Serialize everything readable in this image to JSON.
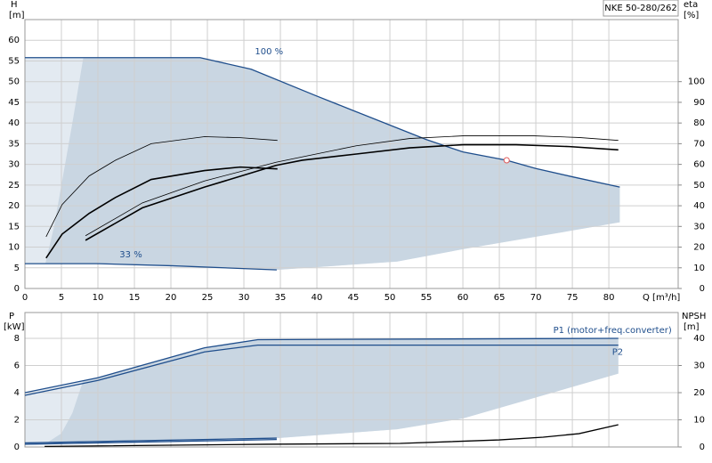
{
  "chart_data": [
    {
      "type": "line",
      "title": "NKE 50-280/262",
      "y_label": "H",
      "y_unit": "[m]",
      "y2_label": "eta",
      "y2_unit": "[%]",
      "x_label": "Q [m³/h]",
      "xlim": [
        0,
        89.5
      ],
      "xticks": [
        0,
        5,
        10,
        15,
        20,
        25,
        30,
        35,
        40,
        45,
        50,
        55,
        60,
        65,
        70,
        75,
        80
      ],
      "ylim": [
        0,
        65
      ],
      "yticks": [
        0,
        5,
        10,
        15,
        20,
        25,
        30,
        35,
        40,
        45,
        50,
        55,
        60
      ],
      "y2lim": [
        0,
        130
      ],
      "y2ticks": [
        0,
        10,
        20,
        30,
        40,
        50,
        60,
        70,
        80,
        90,
        100
      ],
      "grid": true,
      "shaded_range": {
        "color": "#e3eaf1",
        "x": [
          0,
          8,
          24,
          31,
          40,
          45,
          50,
          55,
          60,
          66,
          70,
          75,
          81.5,
          81.5,
          70,
          60,
          51,
          34.5,
          20,
          10,
          0
        ],
        "values": [
          55.8,
          55.8,
          55.8,
          53,
          46.5,
          43,
          39.5,
          36,
          33,
          31,
          29,
          27,
          24.5,
          16,
          12.5,
          9.5,
          6.5,
          4.5,
          5.5,
          6,
          6
        ]
      },
      "shaded_core": {
        "color": "#c9d6e2",
        "x": [
          2.8,
          4,
          5,
          6.5,
          8,
          24,
          31,
          40,
          45,
          50,
          55,
          60,
          66,
          70,
          75,
          81.5,
          81.5,
          70,
          60,
          51,
          34.5,
          20,
          10
        ],
        "values": [
          6,
          15,
          25,
          40,
          55.8,
          55.8,
          53,
          46.5,
          43,
          39.5,
          36,
          33,
          31,
          29,
          27,
          24.5,
          16,
          12.5,
          9.5,
          6.5,
          4.5,
          5.5,
          6
        ]
      },
      "series": [
        {
          "name": "100 %",
          "color": "#1f4e8c",
          "width": 1.3,
          "x": [
            0,
            8,
            24,
            31,
            40,
            45,
            50,
            55,
            60,
            66,
            70,
            75,
            81.5
          ],
          "values": [
            55.8,
            55.8,
            55.8,
            53,
            46.5,
            43,
            39.5,
            36,
            33,
            31,
            29,
            27,
            24.5
          ]
        },
        {
          "name": "33 %",
          "color": "#1f4e8c",
          "width": 1.3,
          "x": [
            0,
            10,
            20,
            34.5
          ],
          "values": [
            6,
            6,
            5.5,
            4.5
          ]
        },
        {
          "color": "#000000",
          "axis": "y2",
          "width": 1.6,
          "x": [
            8.3,
            16.1,
            24.6,
            34.4,
            38,
            45.4,
            52.7,
            60,
            67.3,
            74.6,
            81.3
          ],
          "values": [
            23.3,
            39,
            49,
            59.5,
            62,
            65,
            68,
            69.5,
            69.5,
            68.6,
            67
          ]
        },
        {
          "color": "#000000",
          "axis": "y2",
          "width": 0.8,
          "x": [
            8.3,
            16.1,
            24.6,
            34.4,
            45.4,
            52.7,
            60,
            69.8,
            75.9,
            81.3
          ],
          "values": [
            25.5,
            41.4,
            52,
            61,
            69,
            72.5,
            73.8,
            73.8,
            73,
            71.6
          ]
        },
        {
          "color": "#000000",
          "axis": "y2",
          "width": 1.6,
          "x": [
            2.9,
            5.1,
            8.8,
            12.4,
            17.3,
            24.6,
            29.5,
            34.6
          ],
          "values": [
            14.7,
            26.3,
            36.3,
            44,
            52.7,
            57,
            58.7,
            57.8
          ]
        },
        {
          "color": "#000000",
          "axis": "y2",
          "width": 0.8,
          "x": [
            2.9,
            5.1,
            8.8,
            12.4,
            17.3,
            24.6,
            29.5,
            34.6
          ],
          "values": [
            25,
            40.6,
            54.4,
            62,
            70,
            73.4,
            72.9,
            71.6
          ]
        }
      ],
      "duty_point": {
        "x": 66,
        "y": 31,
        "color": "#e05a5a"
      }
    },
    {
      "type": "line",
      "y_label": "P",
      "y_unit": "[kW]",
      "y2_label": "NPSH",
      "y2_unit": "[m]",
      "xlim": [
        0,
        89.5
      ],
      "xticks": [
        0,
        5,
        10,
        15,
        20,
        25,
        30,
        35,
        40,
        45,
        50,
        55,
        60,
        65,
        70,
        75,
        80
      ],
      "ylim": [
        0,
        9.9
      ],
      "yticks": [
        0,
        2,
        4,
        6,
        8
      ],
      "y2lim": [
        0,
        49.5
      ],
      "y2ticks": [
        0,
        10,
        20,
        30,
        40
      ],
      "grid": true,
      "shaded_range": {
        "color": "#e3eaf1",
        "x": [
          0,
          10,
          24.6,
          31.9,
          81.3,
          81.3,
          60,
          51,
          34.5,
          0
        ],
        "values": [
          4,
          5.1,
          7.3,
          7.9,
          8,
          5.4,
          2.1,
          1.3,
          0.65,
          0.3
        ]
      },
      "shaded_core": {
        "color": "#c9d6e2",
        "x": [
          3,
          5,
          6.5,
          8,
          10,
          24.6,
          31.9,
          81.3,
          81.3,
          60,
          51,
          34.5
        ],
        "values": [
          0.3,
          1,
          2.5,
          4.9,
          5.1,
          7.3,
          7.9,
          8,
          5.4,
          2.1,
          1.3,
          0.65
        ]
      },
      "series": [
        {
          "name": "P1 (motor+freq.converter)",
          "color": "#1f4e8c",
          "width": 1.3,
          "x": [
            0,
            10,
            24.6,
            31.9,
            81.3
          ],
          "values": [
            4,
            5.1,
            7.3,
            7.9,
            8
          ]
        },
        {
          "name": "P2",
          "color": "#1f4e8c",
          "width": 1.3,
          "x": [
            0,
            10,
            24.6,
            31.9,
            81.3
          ],
          "values": [
            3.8,
            4.9,
            7,
            7.5,
            7.5
          ]
        },
        {
          "color": "#1f4e8c",
          "width": 1.3,
          "x": [
            0,
            34.5
          ],
          "values": [
            0.3,
            0.65
          ]
        },
        {
          "color": "#1f4e8c",
          "width": 1.3,
          "x": [
            0,
            34.5
          ],
          "values": [
            0.2,
            0.55
          ]
        },
        {
          "color": "#000000",
          "axis": "y2",
          "width": 1.3,
          "x": [
            2.7,
            33,
            51.4,
            65,
            71,
            75.9,
            81.3
          ],
          "values": [
            0.2,
            1,
            1.3,
            2.6,
            3.6,
            4.9,
            8.2
          ]
        }
      ]
    }
  ]
}
